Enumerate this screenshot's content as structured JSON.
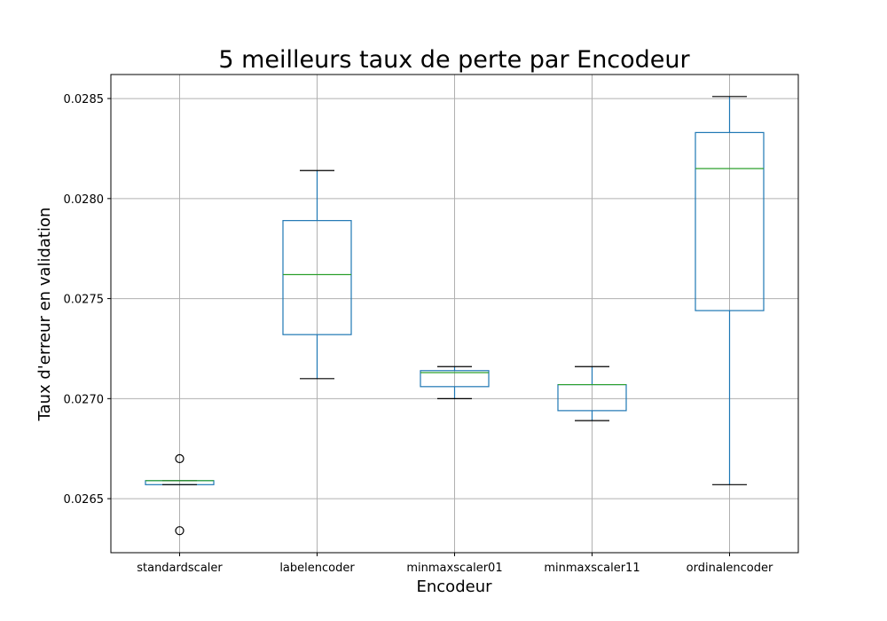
{
  "chart_data": {
    "type": "boxplot",
    "title": "5 meilleurs taux de perte par Encodeur",
    "xlabel": "Encodeur",
    "ylabel": "Taux d'erreur en validation",
    "ylim": [
      0.02623,
      0.02862
    ],
    "yticks": [
      0.0265,
      0.027,
      0.0275,
      0.028,
      0.0285
    ],
    "ytick_labels": [
      "0.0265",
      "0.0270",
      "0.0275",
      "0.0280",
      "0.0285"
    ],
    "grid": true,
    "categories": [
      "standardscaler",
      "labelencoder",
      "minmaxscaler01",
      "minmaxscaler11",
      "ordinalencoder"
    ],
    "boxes": [
      {
        "whisker_low": 0.02657,
        "q1": 0.02657,
        "median": 0.02659,
        "q3": 0.02659,
        "whisker_high": 0.02659,
        "fliers": [
          0.0267,
          0.02634
        ]
      },
      {
        "whisker_low": 0.0271,
        "q1": 0.02732,
        "median": 0.02762,
        "q3": 0.02789,
        "whisker_high": 0.02814,
        "fliers": []
      },
      {
        "whisker_low": 0.027,
        "q1": 0.02706,
        "median": 0.02713,
        "q3": 0.02714,
        "whisker_high": 0.02716,
        "fliers": []
      },
      {
        "whisker_low": 0.02689,
        "q1": 0.02694,
        "median": 0.02707,
        "q3": 0.02707,
        "whisker_high": 0.02716,
        "fliers": []
      },
      {
        "whisker_low": 0.02657,
        "q1": 0.02744,
        "median": 0.02815,
        "q3": 0.02833,
        "whisker_high": 0.02851,
        "fliers": []
      }
    ]
  }
}
